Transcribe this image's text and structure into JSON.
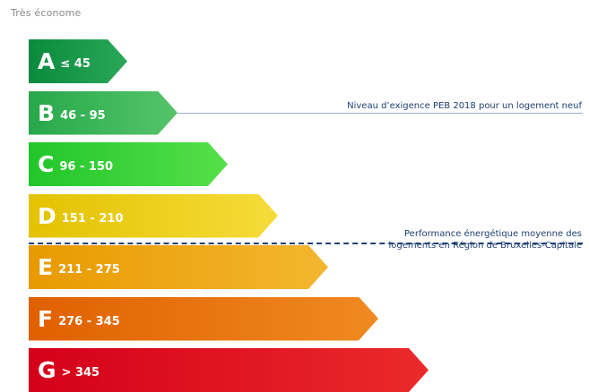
{
  "header": {
    "top_label": "Très économe"
  },
  "chart_data": {
    "type": "bar",
    "title": "",
    "categories": [
      "A",
      "B",
      "C",
      "D",
      "E",
      "F",
      "G"
    ],
    "ranges": [
      "≤ 45",
      "46 - 95",
      "96 - 150",
      "151 - 210",
      "211 - 275",
      "276 - 345",
      "> 345"
    ],
    "colors": [
      "#0a8a3c",
      "#27a84a",
      "#22c62a",
      "#e3c200",
      "#e89a00",
      "#e06000",
      "#d4001a"
    ],
    "colors_light": [
      "#2aa85a",
      "#55c46a",
      "#56e04a",
      "#f6dc3a",
      "#f4b630",
      "#f08a20",
      "#ea2a2a"
    ],
    "rank": [
      1,
      2,
      3,
      4,
      5,
      6,
      7
    ],
    "reference_lines": [
      {
        "label_lines": [
          "Niveau d’exigence PEB 2018 pour un logement neuf"
        ],
        "after_class": "B",
        "style": "solid",
        "color": "#9bb0cc"
      },
      {
        "label_lines": [
          "Performance énergétique moyenne des",
          "logements en Région de Bruxelles-Capitale"
        ],
        "after_class": "D",
        "style": "dashed",
        "color": "#1f3f73"
      }
    ]
  }
}
